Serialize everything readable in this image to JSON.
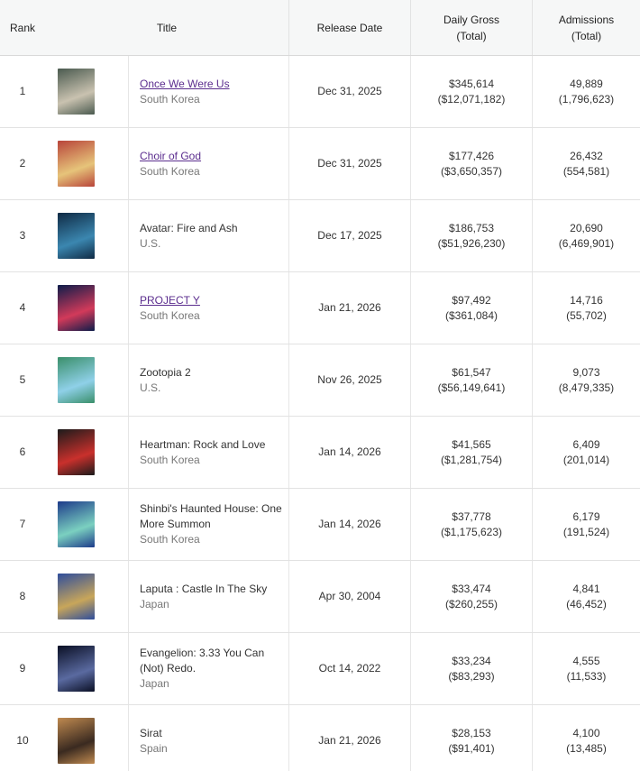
{
  "header": {
    "rank": "Rank",
    "title": "Title",
    "release_date": "Release Date",
    "daily_gross": "Daily Gross",
    "daily_gross_sub": "(Total)",
    "admissions": "Admissions",
    "admissions_sub": "(Total)"
  },
  "rows": [
    {
      "rank": 1,
      "title": "Once We Were Us",
      "linked": true,
      "country": "South Korea",
      "release_date": "Dec 31, 2025",
      "daily_gross": "$345,614",
      "total_gross": "($12,071,182)",
      "admissions": "49,889",
      "total_admissions": "(1,796,623)"
    },
    {
      "rank": 2,
      "title": "Choir of God",
      "linked": true,
      "country": "South Korea",
      "release_date": "Dec 31, 2025",
      "daily_gross": "$177,426",
      "total_gross": "($3,650,357)",
      "admissions": "26,432",
      "total_admissions": "(554,581)"
    },
    {
      "rank": 3,
      "title": "Avatar: Fire and Ash",
      "linked": false,
      "country": "U.S.",
      "release_date": "Dec 17, 2025",
      "daily_gross": "$186,753",
      "total_gross": "($51,926,230)",
      "admissions": "20,690",
      "total_admissions": "(6,469,901)"
    },
    {
      "rank": 4,
      "title": "PROJECT Y",
      "linked": true,
      "country": "South Korea",
      "release_date": "Jan 21, 2026",
      "daily_gross": "$97,492",
      "total_gross": "($361,084)",
      "admissions": "14,716",
      "total_admissions": "(55,702)"
    },
    {
      "rank": 5,
      "title": "Zootopia 2",
      "linked": false,
      "country": "U.S.",
      "release_date": "Nov 26, 2025",
      "daily_gross": "$61,547",
      "total_gross": "($56,149,641)",
      "admissions": "9,073",
      "total_admissions": "(8,479,335)"
    },
    {
      "rank": 6,
      "title": "Heartman: Rock and Love",
      "linked": false,
      "country": "South Korea",
      "release_date": "Jan 14, 2026",
      "daily_gross": "$41,565",
      "total_gross": "($1,281,754)",
      "admissions": "6,409",
      "total_admissions": "(201,014)"
    },
    {
      "rank": 7,
      "title": "Shinbi's Haunted House: One More Summon",
      "linked": false,
      "country": "South Korea",
      "release_date": "Jan 14, 2026",
      "daily_gross": "$37,778",
      "total_gross": "($1,175,623)",
      "admissions": "6,179",
      "total_admissions": "(191,524)"
    },
    {
      "rank": 8,
      "title": "Laputa : Castle In The Sky",
      "linked": false,
      "country": "Japan",
      "release_date": "Apr 30, 2004",
      "daily_gross": "$33,474",
      "total_gross": "($260,255)",
      "admissions": "4,841",
      "total_admissions": "(46,452)"
    },
    {
      "rank": 9,
      "title": "Evangelion: 3.33 You Can (Not) Redo.",
      "linked": false,
      "country": "Japan",
      "release_date": "Oct 14, 2022",
      "daily_gross": "$33,234",
      "total_gross": "($83,293)",
      "admissions": "4,555",
      "total_admissions": "(11,533)"
    },
    {
      "rank": 10,
      "title": "Sirat",
      "linked": false,
      "country": "Spain",
      "release_date": "Jan 21, 2026",
      "daily_gross": "$28,153",
      "total_gross": "($91,401)",
      "admissions": "4,100",
      "total_admissions": "(13,485)"
    }
  ]
}
